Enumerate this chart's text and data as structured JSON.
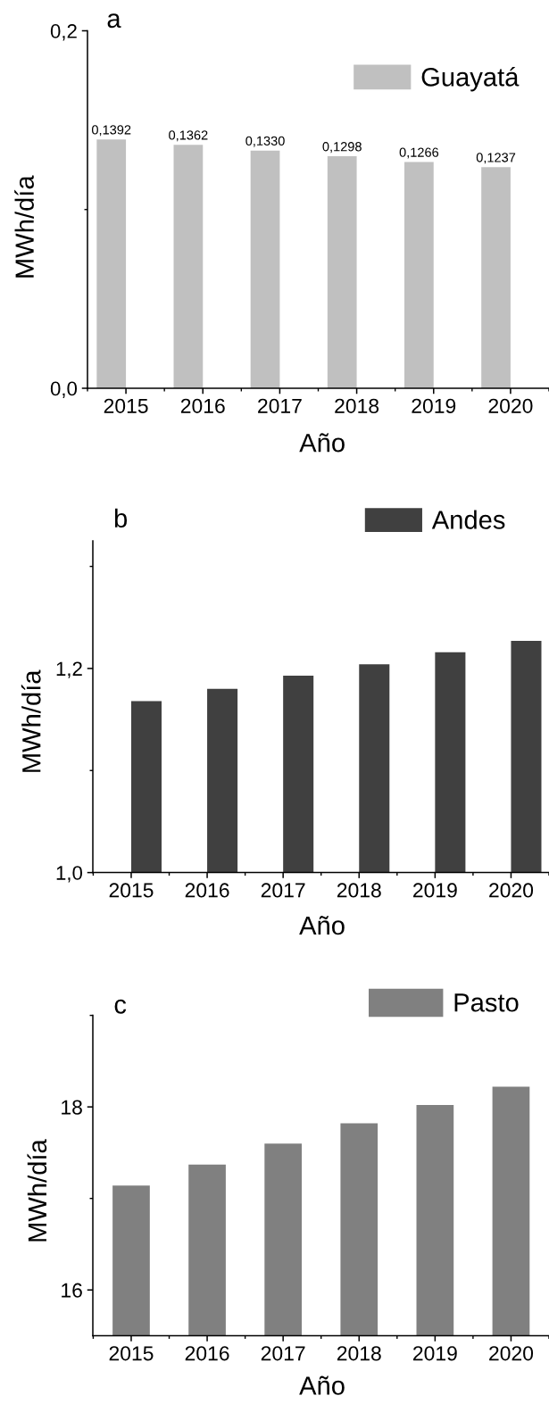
{
  "chart_data": [
    {
      "type": "bar",
      "title": "a",
      "xlabel": "Año",
      "ylabel": "MWh/día",
      "categories": [
        "2015",
        "2016",
        "2017",
        "2018",
        "2019",
        "2020"
      ],
      "series": [
        {
          "name": "Guayatá",
          "color": "#c0c0c0",
          "values": [
            0.1392,
            0.1362,
            0.133,
            0.1298,
            0.1266,
            0.1237
          ],
          "value_labels": [
            "0,1392",
            "0,1362",
            "0,1330",
            "0,1298",
            "0,1266",
            "0,1237"
          ]
        }
      ],
      "ylim": [
        0,
        0.2
      ],
      "yticks": [
        {
          "value": 0,
          "label": "0,0"
        },
        {
          "value": 0.1,
          "label": null
        },
        {
          "value": 0.2,
          "label": "0,2"
        }
      ],
      "legend": "top right"
    },
    {
      "type": "bar",
      "title": "b",
      "xlabel": "Año",
      "ylabel": "MWh/día",
      "categories": [
        "2015",
        "2016",
        "2017",
        "2018",
        "2019",
        "2020"
      ],
      "series": [
        {
          "name": "Andes",
          "color": "#404040",
          "values": [
            1.168,
            1.18,
            1.193,
            1.204,
            1.216,
            1.227
          ]
        }
      ],
      "ylim": [
        1.0,
        1.325
      ],
      "yticks": [
        {
          "value": 1.0,
          "label": "1,0"
        },
        {
          "value": 1.1,
          "label": null
        },
        {
          "value": 1.2,
          "label": "1,2"
        },
        {
          "value": 1.3,
          "label": null
        }
      ],
      "legend": "top right"
    },
    {
      "type": "bar",
      "title": "c",
      "xlabel": "Año",
      "ylabel": "MWh/día",
      "categories": [
        "2015",
        "2016",
        "2017",
        "2018",
        "2019",
        "2020"
      ],
      "series": [
        {
          "name": "Pasto",
          "color": "#808080",
          "values": [
            17.14,
            17.37,
            17.6,
            17.82,
            18.02,
            18.22
          ]
        }
      ],
      "ylim": [
        15.5,
        19
      ],
      "yticks": [
        16,
        {
          "value": 17,
          "label": null
        },
        18,
        {
          "value": 19,
          "label": null
        }
      ],
      "legend": "top right"
    }
  ]
}
